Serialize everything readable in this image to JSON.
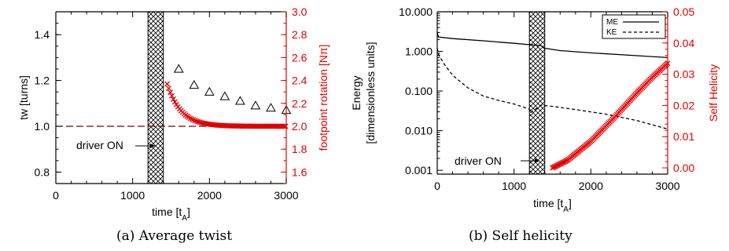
{
  "captions": {
    "a": "(a) Average twist",
    "b": "(b) Self helicity"
  },
  "chart_data": [
    {
      "type": "scatter",
      "xlabel_base": "time [t",
      "xlabel_sub": "A",
      "xlabel_end": "]",
      "ylabel_left": "tw [turns]",
      "ylabel_right": "footpoint rotation [Nπ]",
      "xlim": [
        0,
        3000
      ],
      "ylim_left": [
        0.75,
        1.5
      ],
      "ylim_right": [
        1.5,
        3.0
      ],
      "xticks": [
        "0",
        "1000",
        "2000",
        "3000"
      ],
      "xtick_values": [
        0,
        1000,
        2000,
        3000
      ],
      "yticks_left": [
        "0.8",
        "1.0",
        "1.2",
        "1.4"
      ],
      "ytick_values_left": [
        0.8,
        1.0,
        1.2,
        1.4
      ],
      "yticks_right": [
        "1.6",
        "1.8",
        "2.0",
        "2.2",
        "2.4",
        "2.6",
        "2.8",
        "3.0"
      ],
      "ytick_values_right": [
        1.6,
        1.8,
        2.0,
        2.2,
        2.4,
        2.6,
        2.8,
        3.0
      ],
      "driver_band": [
        1200,
        1400
      ],
      "annotation": "driver ON",
      "reference_line_left": 1.0,
      "colors": {
        "axis_right": "#e00000",
        "markers_red": "#e00000",
        "markers_black": "#000000",
        "line": "#7a0000"
      },
      "series": [
        {
          "marker": "triangle",
          "x": [
            1600,
            1800,
            2000,
            2200,
            2400,
            2600,
            2800,
            3000
          ],
          "y": [
            1.25,
            1.18,
            1.15,
            1.13,
            1.11,
            1.09,
            1.08,
            1.07
          ]
        },
        {
          "marker": "x-cross",
          "axis": "right",
          "x_start": 1450,
          "x_end": 3000,
          "x_step": 20,
          "model": {
            "base": 2.0,
            "amplitude": 0.37,
            "tau": 180
          }
        }
      ]
    },
    {
      "type": "line",
      "xlabel_base": "time [t",
      "xlabel_sub": "A",
      "xlabel_end": "]",
      "ylabel_left_line1": "Energy",
      "ylabel_left_line2": "[dimensionless units]",
      "ylabel_right": "Self Helicity",
      "yscale_left": "log",
      "xlim": [
        0,
        3000
      ],
      "ylim_left": [
        0.0008,
        10
      ],
      "ylim_right": [
        -0.002,
        0.05
      ],
      "xticks": [
        "0",
        "1000",
        "2000",
        "3000"
      ],
      "xtick_values": [
        0,
        1000,
        2000,
        3000
      ],
      "yticks_left": [
        "0.001",
        "0.010",
        "0.100",
        "1.000",
        "10.000"
      ],
      "ytick_values_left": [
        0.001,
        0.01,
        0.1,
        1,
        10
      ],
      "yticks_right": [
        "0.00",
        "0.01",
        "0.02",
        "0.03",
        "0.04",
        "0.05"
      ],
      "ytick_values_right": [
        0,
        0.01,
        0.02,
        0.03,
        0.04,
        0.05
      ],
      "driver_band": [
        1200,
        1400
      ],
      "annotation": "driver ON",
      "legend": {
        "placement": "top-right",
        "entries": [
          "ME",
          "KE"
        ]
      },
      "colors": {
        "axis_right": "#e00000",
        "markers_red": "#e00000"
      },
      "series": [
        {
          "name": "ME",
          "style": "solid",
          "x": [
            0,
            15,
            200,
            600,
            1000,
            1250,
            1350,
            1400,
            1600,
            2000,
            2500,
            3000
          ],
          "y": [
            3.0,
            2.3,
            2.1,
            1.85,
            1.6,
            1.45,
            1.4,
            1.2,
            1.05,
            0.92,
            0.8,
            0.7
          ]
        },
        {
          "name": "KE",
          "style": "dashed",
          "x": [
            0,
            20,
            100,
            200,
            400,
            600,
            800,
            1000,
            1200,
            1210,
            1350,
            1500,
            1800,
            2200,
            2600,
            3000
          ],
          "y": [
            1.2,
            0.8,
            0.45,
            0.25,
            0.12,
            0.075,
            0.058,
            0.047,
            0.035,
            0.028,
            0.044,
            0.041,
            0.034,
            0.026,
            0.018,
            0.011
          ]
        },
        {
          "name": "Self Helicity",
          "marker": "x-cross",
          "axis": "right",
          "x": [
            1500,
            1700,
            2000,
            2300,
            2600,
            2800,
            3000
          ],
          "y": [
            0.0,
            0.0025,
            0.0085,
            0.016,
            0.024,
            0.029,
            0.0335
          ]
        }
      ]
    }
  ]
}
